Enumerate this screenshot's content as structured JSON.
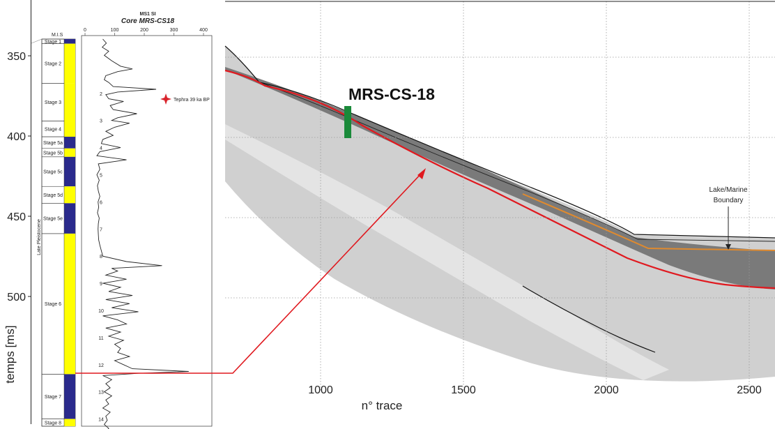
{
  "chart_data": [
    {
      "type": "line",
      "title": "MS1 SI",
      "subtitle": "Core MRS-CS18",
      "xaxis_ticks": [
        "0",
        "100",
        "200",
        "300",
        "400"
      ],
      "xlim": [
        0,
        400
      ],
      "ylabel": "temps [ms]",
      "ytick_labels": [
        "350",
        "400",
        "450",
        "500"
      ],
      "depth_labels": [
        "2",
        "3",
        "4",
        "5",
        "6",
        "7",
        "8",
        "9",
        "10",
        "11",
        "12",
        "13",
        "14"
      ],
      "mis_header": "M.I.S",
      "period_label": "Late Pleistocene",
      "stages": [
        {
          "label": "Stage 1",
          "from": 0.0,
          "to": 0.17,
          "color": "#2a2a8c"
        },
        {
          "label": "Stage 2",
          "from": 0.17,
          "to": 1.63,
          "color": "#ffff00"
        },
        {
          "label": "Stage 3",
          "from": 1.63,
          "to": 3.02,
          "color": "#ffff00"
        },
        {
          "label": "Stage 4",
          "from": 3.02,
          "to": 3.6,
          "color": "#ffff00"
        },
        {
          "label": "Stage 5a",
          "from": 3.6,
          "to": 4.03,
          "color": "#2a2a8c"
        },
        {
          "label": "Stage 5b",
          "from": 4.03,
          "to": 4.34,
          "color": "#ffff00"
        },
        {
          "label": "Stage 5c",
          "from": 4.34,
          "to": 5.43,
          "color": "#2a2a8c"
        },
        {
          "label": "Stage 5d",
          "from": 5.43,
          "to": 6.05,
          "color": "#ffff00"
        },
        {
          "label": "Stage 5e",
          "from": 6.05,
          "to": 7.17,
          "color": "#2a2a8c"
        },
        {
          "label": "Stage 6",
          "from": 7.17,
          "to": 12.35,
          "color": "#ffff00"
        },
        {
          "label": "Stage 7",
          "from": 12.35,
          "to": 14.0,
          "color": "#2a2a8c"
        },
        {
          "label": "Stage 8",
          "from": 14.0,
          "to": 14.55,
          "color": "#ffff00"
        }
      ],
      "series": [
        {
          "name": "MS1 SI",
          "depth": [
            0.0,
            0.15,
            0.3,
            0.45,
            0.6,
            0.8,
            1.0,
            1.1,
            1.2,
            1.35,
            1.5,
            1.6,
            1.75,
            1.85,
            1.95,
            2.05,
            2.2,
            2.3,
            2.45,
            2.6,
            2.75,
            2.9,
            3.0,
            3.1,
            3.25,
            3.4,
            3.55,
            3.7,
            3.85,
            4.0,
            4.15,
            4.3,
            4.45,
            4.6,
            4.8,
            5.0,
            5.2,
            5.4,
            5.6,
            5.8,
            6.0,
            6.2,
            6.4,
            6.6,
            6.8,
            7.0,
            7.2,
            7.4,
            7.6,
            7.8,
            8.0,
            8.2,
            8.35,
            8.45,
            8.55,
            8.7,
            8.85,
            9.0,
            9.15,
            9.3,
            9.45,
            9.6,
            9.75,
            9.9,
            10.05,
            10.2,
            10.35,
            10.5,
            10.65,
            10.8,
            10.95,
            11.1,
            11.25,
            11.4,
            11.55,
            11.7,
            11.85,
            12.0,
            12.15,
            12.25,
            12.32,
            12.4,
            12.55,
            12.7,
            12.85,
            13.0,
            13.15,
            13.3,
            13.45,
            13.6,
            13.75,
            13.9,
            14.05,
            14.2,
            14.35,
            14.5
          ],
          "values": [
            60,
            72,
            58,
            80,
            65,
            90,
            120,
            160,
            110,
            70,
            65,
            80,
            95,
            240,
            110,
            70,
            80,
            130,
            85,
            95,
            175,
            110,
            90,
            150,
            100,
            70,
            95,
            60,
            55,
            120,
            50,
            40,
            140,
            45,
            50,
            40,
            48,
            42,
            45,
            50,
            44,
            46,
            42,
            48,
            45,
            44,
            45,
            46,
            50,
            55,
            60,
            140,
            260,
            90,
            110,
            70,
            140,
            60,
            120,
            80,
            160,
            70,
            150,
            90,
            180,
            60,
            110,
            140,
            70,
            120,
            80,
            130,
            100,
            120,
            110,
            150,
            100,
            130,
            160,
            350,
            180,
            60,
            90,
            70,
            85,
            65,
            90,
            70,
            80,
            60,
            85,
            70,
            75,
            65,
            80,
            70
          ]
        }
      ],
      "annotations": [
        {
          "label": "Tephra 39 ka BP",
          "depth": 1.98,
          "value": 270
        }
      ]
    },
    {
      "type": "image",
      "xlabel": "n° trace",
      "xtick_labels": [
        "1000",
        "1500",
        "2000",
        "2500"
      ],
      "xlim": [
        650,
        2600
      ],
      "core_label": "MRS-CS-18",
      "core_trace": 1095,
      "boundary_label_line1": "Lake/Marine",
      "boundary_label_line2": "Boundary",
      "horizon_colors": {
        "red": "#e0191f",
        "orange": "#e08a2e",
        "core": "#1a8a3a"
      }
    }
  ]
}
